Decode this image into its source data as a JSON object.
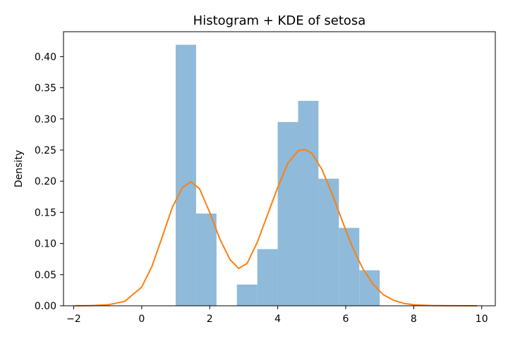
{
  "chart_data": {
    "type": "histogram+kde",
    "title": "Histogram + KDE of setosa",
    "xlabel": "",
    "ylabel": "Density",
    "xlim": [
      -2.3,
      10.4
    ],
    "ylim": [
      0,
      0.44
    ],
    "xticks": [
      -2,
      0,
      2,
      4,
      6,
      8,
      10
    ],
    "yticks": [
      0.0,
      0.05,
      0.1,
      0.15,
      0.2,
      0.25,
      0.3,
      0.35,
      0.4
    ],
    "ytick_labels": [
      "0.00",
      "0.05",
      "0.10",
      "0.15",
      "0.20",
      "0.25",
      "0.30",
      "0.35",
      "0.40"
    ],
    "grid": false,
    "histogram": {
      "color": "#8fbada",
      "bins": [
        {
          "x0": 1.0,
          "x1": 1.6,
          "density": 0.419
        },
        {
          "x0": 1.6,
          "x1": 2.2,
          "density": 0.148
        },
        {
          "x0": 2.2,
          "x1": 2.8,
          "density": 0.0
        },
        {
          "x0": 2.8,
          "x1": 3.4,
          "density": 0.034
        },
        {
          "x0": 3.4,
          "x1": 4.0,
          "density": 0.091
        },
        {
          "x0": 4.0,
          "x1": 4.6,
          "density": 0.295
        },
        {
          "x0": 4.6,
          "x1": 5.2,
          "density": 0.329
        },
        {
          "x0": 5.2,
          "x1": 5.8,
          "density": 0.204
        },
        {
          "x0": 5.8,
          "x1": 6.4,
          "density": 0.125
        },
        {
          "x0": 6.4,
          "x1": 7.0,
          "density": 0.057
        }
      ]
    },
    "kde": {
      "color": "#ff7f0e",
      "x": [
        -1.95,
        -1.5,
        -1.0,
        -0.5,
        0.0,
        0.3,
        0.6,
        0.9,
        1.2,
        1.45,
        1.7,
        2.0,
        2.3,
        2.6,
        2.85,
        3.1,
        3.4,
        3.7,
        4.0,
        4.3,
        4.6,
        4.8,
        5.0,
        5.3,
        5.6,
        5.9,
        6.2,
        6.5,
        6.8,
        7.1,
        7.4,
        7.7,
        8.0,
        8.5,
        9.0,
        9.5,
        9.85
      ],
      "y": [
        0.0,
        0.0003,
        0.0015,
        0.007,
        0.03,
        0.063,
        0.11,
        0.158,
        0.19,
        0.199,
        0.188,
        0.15,
        0.107,
        0.074,
        0.06,
        0.068,
        0.102,
        0.146,
        0.19,
        0.229,
        0.249,
        0.251,
        0.245,
        0.219,
        0.18,
        0.136,
        0.094,
        0.06,
        0.035,
        0.018,
        0.009,
        0.004,
        0.0015,
        0.0004,
        0.0001,
        0.0,
        0.0
      ]
    }
  }
}
